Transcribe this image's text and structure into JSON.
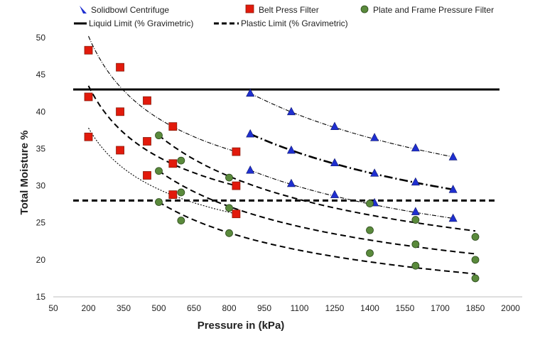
{
  "chart_data": {
    "type": "scatter",
    "xlabel": "Pressure in (kPa)",
    "ylabel": "Total Moisture  %",
    "x_ticks": [
      "50",
      "200",
      "350",
      "500",
      "650",
      "800",
      "950",
      "1100",
      "1250",
      "1400",
      "1550",
      "1700",
      "1850",
      "2000"
    ],
    "y_ticks": [
      "15",
      "20",
      "25",
      "30",
      "35",
      "40",
      "45",
      "50"
    ],
    "x_tick_values": [
      50,
      200,
      350,
      500,
      650,
      800,
      950,
      1100,
      1250,
      1400,
      1550,
      1700,
      1850,
      2000
    ],
    "y_tick_values": [
      15,
      20,
      25,
      30,
      35,
      40,
      45,
      50
    ],
    "xlim": [
      50,
      2050
    ],
    "ylim": [
      15,
      50
    ],
    "grid": false,
    "legend_position": "top",
    "series": [
      {
        "name": "Solidbowl Centrifuge",
        "marker": "triangle",
        "color": "#1f2fd0",
        "points": [
          [
            890,
            42.5
          ],
          [
            1065,
            40.0
          ],
          [
            1250,
            38.0
          ],
          [
            1420,
            36.5
          ],
          [
            1595,
            35.1
          ],
          [
            1755,
            33.9
          ],
          [
            890,
            37.0
          ],
          [
            1065,
            34.8
          ],
          [
            1250,
            33.1
          ],
          [
            1420,
            31.7
          ],
          [
            1595,
            30.5
          ],
          [
            1755,
            29.5
          ],
          [
            890,
            32.1
          ],
          [
            1065,
            30.3
          ],
          [
            1250,
            28.8
          ],
          [
            1420,
            27.7
          ],
          [
            1595,
            26.5
          ],
          [
            1755,
            25.6
          ]
        ]
      },
      {
        "name": "Belt Press Filter",
        "marker": "square",
        "color": "#e21a0c",
        "points": [
          [
            200,
            48.3
          ],
          [
            335,
            46.0
          ],
          [
            450,
            41.5
          ],
          [
            560,
            38.0
          ],
          [
            830,
            34.6
          ],
          [
            200,
            42.0
          ],
          [
            335,
            40.0
          ],
          [
            450,
            36.0
          ],
          [
            560,
            33.0
          ],
          [
            830,
            30.0
          ],
          [
            200,
            36.6
          ],
          [
            335,
            34.8
          ],
          [
            450,
            31.4
          ],
          [
            560,
            28.8
          ],
          [
            830,
            26.2
          ]
        ]
      },
      {
        "name": "Plate and Frame Pressure Filter",
        "marker": "circle",
        "color": "#5a8a3c",
        "points": [
          [
            500,
            36.8
          ],
          [
            595,
            33.4
          ],
          [
            800,
            31.1
          ],
          [
            1400,
            27.6
          ],
          [
            1595,
            25.4
          ],
          [
            1850,
            23.1
          ],
          [
            500,
            32.0
          ],
          [
            595,
            29.1
          ],
          [
            800,
            27.0
          ],
          [
            1400,
            24.0
          ],
          [
            1595,
            22.1
          ],
          [
            1850,
            20.0
          ],
          [
            500,
            27.8
          ],
          [
            595,
            25.3
          ],
          [
            800,
            23.6
          ],
          [
            1400,
            20.9
          ],
          [
            1595,
            19.2
          ],
          [
            1850,
            17.5
          ]
        ]
      }
    ],
    "lines": [
      {
        "name": "Liquid Limit (% Gravimetric)",
        "style": "solid",
        "y": 43
      },
      {
        "name": "Plastic Limit (% Gravimetric)",
        "style": "dashed",
        "y": 28
      }
    ],
    "trendlines": [
      {
        "style": "dashdot-thin",
        "from": [
          200,
          50.2
        ],
        "to": [
          830,
          34.6
        ]
      },
      {
        "style": "dashed-thick",
        "from": [
          200,
          43.5
        ],
        "to": [
          830,
          30.0
        ]
      },
      {
        "style": "dotted-thin",
        "from": [
          200,
          37.8
        ],
        "to": [
          830,
          26.2
        ]
      },
      {
        "style": "dashdot-thin",
        "from": [
          890,
          42.5
        ],
        "to": [
          1755,
          33.9
        ]
      },
      {
        "style": "dashdot-thick",
        "from": [
          890,
          37.0
        ],
        "to": [
          1755,
          29.5
        ]
      },
      {
        "style": "dashdot-thin",
        "from": [
          890,
          32.1
        ],
        "to": [
          1755,
          25.6
        ]
      },
      {
        "style": "dashed-thick",
        "from": [
          500,
          36.8
        ],
        "to": [
          1850,
          23.9
        ]
      },
      {
        "style": "dashed-thick",
        "from": [
          500,
          32.0
        ],
        "to": [
          1850,
          20.8
        ]
      },
      {
        "style": "dashed-thick",
        "from": [
          500,
          27.8
        ],
        "to": [
          1850,
          18.1
        ]
      }
    ]
  }
}
